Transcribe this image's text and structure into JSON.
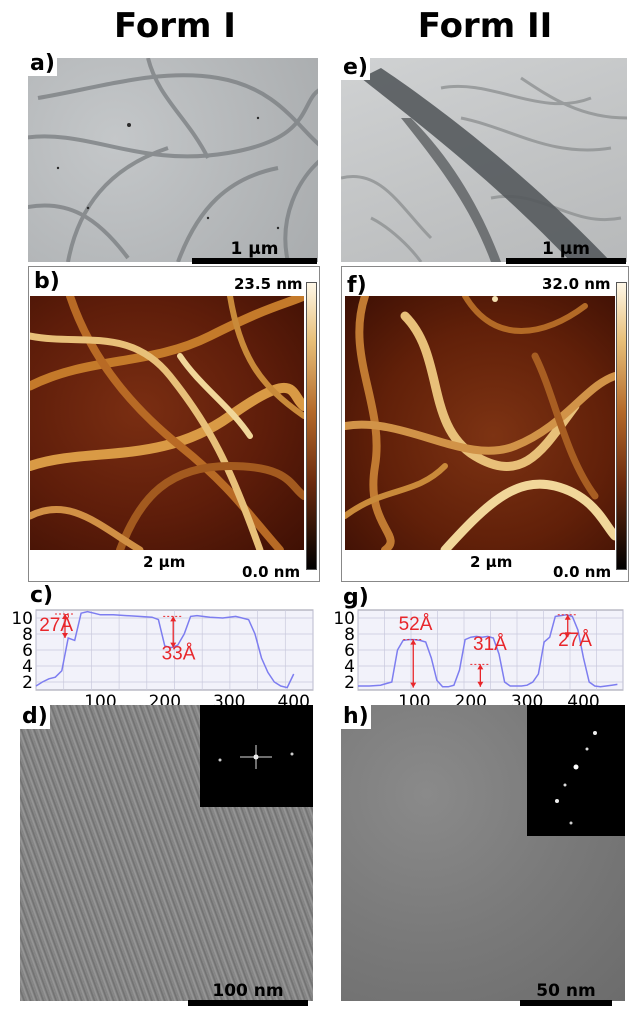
{
  "titles": {
    "left": "Form I",
    "right": "Form II"
  },
  "panels": {
    "a": "a)",
    "b": "b)",
    "c": "c)",
    "d": "d)",
    "e": "e)",
    "f": "f)",
    "g": "g)",
    "h": "h)"
  },
  "scalebars": {
    "a": "1 μm",
    "e": "1 μm",
    "d": "100 nm",
    "h": "50 nm"
  },
  "afm": {
    "b": {
      "max": "23.5 nm",
      "min": "0.0 nm",
      "scale": "2 μm"
    },
    "f": {
      "max": "32.0 nm",
      "min": "0.0 nm",
      "scale": "2 μm"
    }
  },
  "colors": {
    "annotation": "#e8262b",
    "profile_line": "#7d7df0",
    "grid": "#c9c9dd",
    "afm_bright": "#f1d79a"
  },
  "chart_data": [
    {
      "type": "line",
      "panel": "c",
      "x": [
        0,
        10,
        20,
        30,
        40,
        50,
        60,
        70,
        80,
        90,
        100,
        120,
        140,
        160,
        180,
        190,
        200,
        210,
        220,
        230,
        240,
        250,
        270,
        290,
        310,
        330,
        340,
        350,
        360,
        370,
        380,
        390,
        400
      ],
      "y": [
        1.5,
        2.0,
        2.4,
        2.6,
        3.4,
        7.5,
        7.2,
        10.6,
        10.8,
        10.6,
        10.4,
        10.4,
        10.3,
        10.2,
        10.1,
        9.8,
        6.5,
        6.3,
        6.6,
        8.0,
        10.2,
        10.3,
        10.1,
        10.0,
        10.2,
        9.8,
        8.0,
        5.0,
        3.2,
        2.0,
        1.5,
        1.3,
        3.0
      ],
      "xticks": [
        100,
        200,
        300,
        400
      ],
      "yticks": [
        2,
        4,
        6,
        8,
        10
      ],
      "xlim": [
        0,
        430
      ],
      "ylim": [
        1,
        11
      ],
      "grid": true,
      "annotations": [
        {
          "text": "27Å",
          "x": 45,
          "y_from": 7.5,
          "y_to": 10.5,
          "label_x": 5,
          "label_y": 8.4
        },
        {
          "text": "33Å",
          "x": 213,
          "y_from": 6.3,
          "y_to": 10.2,
          "label_x": 195,
          "label_y": 4.8
        }
      ]
    },
    {
      "type": "line",
      "panel": "g",
      "x": [
        0,
        20,
        40,
        60,
        70,
        80,
        90,
        100,
        110,
        120,
        130,
        140,
        150,
        160,
        170,
        180,
        190,
        200,
        210,
        220,
        230,
        240,
        250,
        260,
        270,
        280,
        290,
        300,
        310,
        320,
        330,
        340,
        350,
        360,
        370,
        380,
        390,
        400,
        410,
        420,
        430,
        440,
        450,
        460
      ],
      "y": [
        1.5,
        1.5,
        1.6,
        2.0,
        6.0,
        7.2,
        7.3,
        7.3,
        7.2,
        7.0,
        5.0,
        2.2,
        1.4,
        1.4,
        1.6,
        3.5,
        7.3,
        7.6,
        7.7,
        7.6,
        7.7,
        7.5,
        5.5,
        2.0,
        1.5,
        1.5,
        1.5,
        1.6,
        2.0,
        3.0,
        7.0,
        7.6,
        10.2,
        10.3,
        10.4,
        10.2,
        8.5,
        5.0,
        2.0,
        1.5,
        1.4,
        1.5,
        1.6,
        1.7
      ],
      "xticks": [
        100,
        200,
        300,
        400
      ],
      "yticks": [
        2,
        4,
        6,
        8,
        10
      ],
      "xlim": [
        0,
        470
      ],
      "ylim": [
        1,
        11
      ],
      "grid": true,
      "annotations": [
        {
          "text": "52Å",
          "x": 98,
          "y_from": 1.3,
          "y_to": 7.3,
          "label_x": 72,
          "label_y": 8.5
        },
        {
          "text": "31Å",
          "x": 217,
          "y_from": 1.4,
          "y_to": 4.2,
          "label_x": 204,
          "label_y": 6.0
        },
        {
          "text": "27Å",
          "x": 372,
          "y_from": 7.6,
          "y_to": 10.4,
          "label_x": 355,
          "label_y": 6.5
        }
      ]
    }
  ]
}
